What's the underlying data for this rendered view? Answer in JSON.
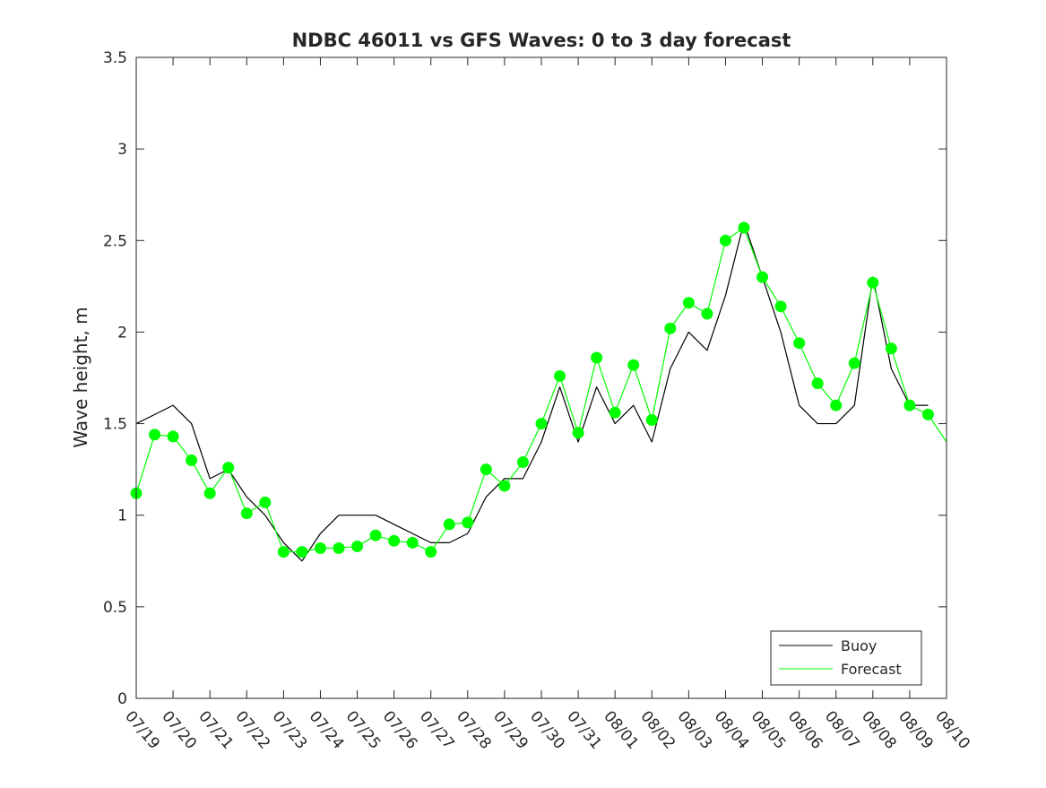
{
  "chart_data": {
    "type": "line",
    "title": "NDBC 46011 vs GFS Waves: 0 to 3 day forecast",
    "xlabel": "",
    "ylabel": "Wave height, m",
    "ylim": [
      0,
      3.5
    ],
    "yticks": [
      "0",
      "0.5",
      "1",
      "1.5",
      "2",
      "2.5",
      "3",
      "3.5"
    ],
    "xlim": [
      "07/19",
      "08/10"
    ],
    "xticks": [
      "07/19",
      "07/20",
      "07/21",
      "07/22",
      "07/23",
      "07/24",
      "07/25",
      "07/26",
      "07/27",
      "07/28",
      "07/29",
      "07/30",
      "07/31",
      "08/01",
      "08/02",
      "08/03",
      "08/04",
      "08/05",
      "08/06",
      "08/07",
      "08/08",
      "08/09",
      "08/10"
    ],
    "grid": false,
    "legend": {
      "placement": "bottom-right",
      "entries": [
        "Buoy",
        "Forecast"
      ]
    },
    "colors": {
      "buoy": "#000000",
      "forecast": "#00ff00",
      "axes": "#262626"
    },
    "series": [
      {
        "name": "Buoy",
        "x": [
          "07/19",
          "07/19 12:00",
          "07/20",
          "07/20 12:00",
          "07/21",
          "07/21 12:00",
          "07/22",
          "07/22 12:00",
          "07/23",
          "07/23 12:00",
          "07/24",
          "07/24 12:00",
          "07/25",
          "07/25 12:00",
          "07/26",
          "07/26 12:00",
          "07/27",
          "07/27 12:00",
          "07/28",
          "07/28 12:00",
          "07/29",
          "07/29 12:00",
          "07/30",
          "07/30 12:00",
          "07/31",
          "07/31 12:00",
          "08/01",
          "08/01 12:00",
          "08/02",
          "08/02 12:00",
          "08/03",
          "08/03 12:00",
          "08/04",
          "08/04 12:00",
          "08/05",
          "08/05 12:00",
          "08/06",
          "08/06 12:00",
          "08/07",
          "08/07 12:00",
          "08/08",
          "08/08 12:00",
          "08/09",
          "08/09 12:00"
        ],
        "values": [
          1.5,
          1.55,
          1.6,
          1.5,
          1.2,
          1.25,
          1.1,
          1.0,
          0.85,
          0.75,
          0.9,
          1.0,
          1.0,
          1.0,
          0.95,
          0.9,
          0.85,
          0.85,
          0.9,
          1.1,
          1.2,
          1.2,
          1.4,
          1.7,
          1.4,
          1.7,
          1.5,
          1.6,
          1.4,
          1.8,
          2.0,
          1.9,
          2.2,
          2.6,
          2.3,
          2.0,
          1.6,
          1.5,
          1.5,
          1.6,
          2.3,
          1.8,
          1.6,
          1.6
        ]
      },
      {
        "name": "Forecast",
        "x": [
          "07/19",
          "07/19 12:00",
          "07/20",
          "07/20 12:00",
          "07/21",
          "07/21 12:00",
          "07/22",
          "07/22 12:00",
          "07/23",
          "07/23 12:00",
          "07/24",
          "07/24 12:00",
          "07/25",
          "07/25 12:00",
          "07/26",
          "07/26 12:00",
          "07/27",
          "07/27 12:00",
          "07/28",
          "07/28 12:00",
          "07/29",
          "07/29 12:00",
          "07/30",
          "07/30 12:00",
          "07/31",
          "07/31 12:00",
          "08/01",
          "08/01 12:00",
          "08/02",
          "08/02 12:00",
          "08/03",
          "08/03 12:00",
          "08/04",
          "08/04 12:00",
          "08/05",
          "08/05 12:00",
          "08/06",
          "08/06 12:00",
          "08/07",
          "08/07 12:00",
          "08/08",
          "08/08 12:00",
          "08/09",
          "08/09 12:00",
          "08/10"
        ],
        "values": [
          1.12,
          1.44,
          1.43,
          1.3,
          1.12,
          1.26,
          1.01,
          1.07,
          0.8,
          0.8,
          0.82,
          0.82,
          0.83,
          0.89,
          0.86,
          0.85,
          0.8,
          0.95,
          0.96,
          1.25,
          1.16,
          1.29,
          1.5,
          1.76,
          1.45,
          1.86,
          1.56,
          1.82,
          1.52,
          2.02,
          2.16,
          2.1,
          2.5,
          2.57,
          2.3,
          2.14,
          1.94,
          1.72,
          1.6,
          1.83,
          2.27,
          1.91,
          1.6,
          1.55,
          1.4
        ]
      }
    ]
  }
}
